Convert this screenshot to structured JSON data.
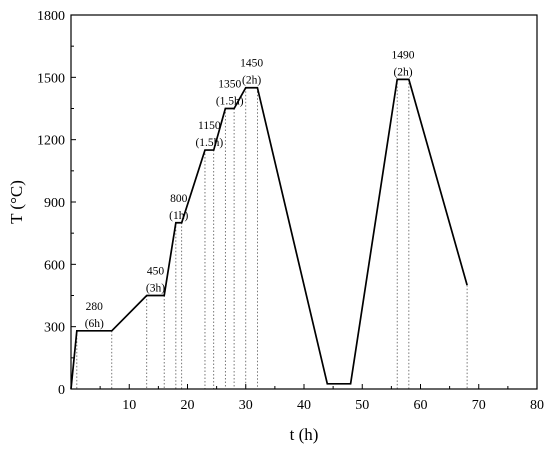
{
  "chart_data": {
    "type": "line",
    "title": "",
    "xlabel": "t (h)",
    "ylabel": "T (°C)",
    "xlim": [
      0,
      80
    ],
    "ylim": [
      0,
      1800
    ],
    "xticks": [
      10,
      20,
      30,
      40,
      50,
      60,
      70,
      80
    ],
    "yticks": [
      0,
      300,
      600,
      900,
      1200,
      1500,
      1800
    ],
    "grid": false,
    "line_color": "#000000",
    "dropline_color": "#555555",
    "series": [
      {
        "x": [
          0,
          1,
          7,
          13,
          16,
          18,
          19,
          23,
          24.5,
          26.5,
          28,
          30,
          32,
          44,
          48,
          56,
          58,
          68
        ],
        "y": [
          0,
          280,
          280,
          450,
          450,
          800,
          800,
          1150,
          1150,
          1350,
          1350,
          1450,
          1450,
          25,
          25,
          1490,
          1490,
          500
        ]
      }
    ],
    "droplines_x": [
      1,
      7,
      13,
      16,
      18,
      19,
      23,
      24.5,
      26.5,
      28,
      30,
      32,
      56,
      58,
      68
    ],
    "annotations": [
      {
        "text": "280",
        "x": 4,
        "y": 280,
        "row": 2
      },
      {
        "text": "(6h)",
        "x": 4,
        "y": 280,
        "row": 1
      },
      {
        "text": "450",
        "x": 14.5,
        "y": 450,
        "row": 2
      },
      {
        "text": "(3h)",
        "x": 14.5,
        "y": 450,
        "row": 1
      },
      {
        "text": "800",
        "x": 18.5,
        "y": 800,
        "row": 2
      },
      {
        "text": "(1h)",
        "x": 18.5,
        "y": 800,
        "row": 1
      },
      {
        "text": "1150",
        "x": 23.75,
        "y": 1150,
        "row": 2
      },
      {
        "text": "(1.5h)",
        "x": 23.75,
        "y": 1150,
        "row": 1
      },
      {
        "text": "1350",
        "x": 27.25,
        "y": 1350,
        "row": 2
      },
      {
        "text": "(1.5h)",
        "x": 27.25,
        "y": 1350,
        "row": 1
      },
      {
        "text": "1450",
        "x": 31,
        "y": 1450,
        "row": 2
      },
      {
        "text": "(2h)",
        "x": 31,
        "y": 1450,
        "row": 1
      },
      {
        "text": "1490",
        "x": 57,
        "y": 1490,
        "row": 2
      },
      {
        "text": "(2h)",
        "x": 57,
        "y": 1490,
        "row": 1
      }
    ]
  }
}
